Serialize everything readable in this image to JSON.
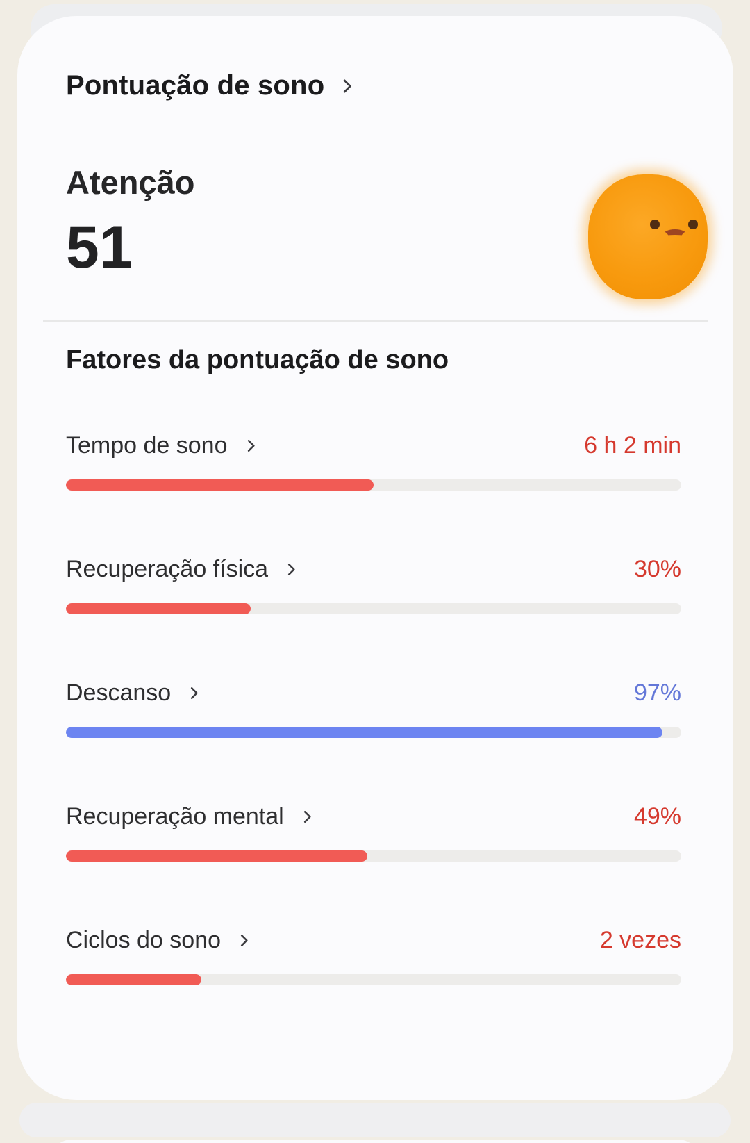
{
  "card": {
    "title": "Pontuação de sono",
    "status_label": "Atenção",
    "score": "51",
    "mascot": "sad-orange-fuzzy-character",
    "section_heading": "Fatores da pontuação de sono",
    "factors": [
      {
        "label": "Tempo de sono",
        "value": "6 h 2 min",
        "color": "red",
        "percent": 50
      },
      {
        "label": "Recuperação física",
        "value": "30%",
        "color": "red",
        "percent": 30
      },
      {
        "label": "Descanso",
        "value": "97%",
        "color": "blue",
        "percent": 97
      },
      {
        "label": "Recuperação mental",
        "value": "49%",
        "color": "red",
        "percent": 49
      },
      {
        "label": "Ciclos do sono",
        "value": "2 vezes",
        "color": "red",
        "percent": 22
      }
    ]
  },
  "colors": {
    "red": "#F15B55",
    "blue": "#6C84F1",
    "red_text": "#D5392E",
    "blue_text": "#6377D8",
    "background": "#F1EDE4",
    "card": "#FBFBFD",
    "mascot_orange": "#F89A0E"
  }
}
